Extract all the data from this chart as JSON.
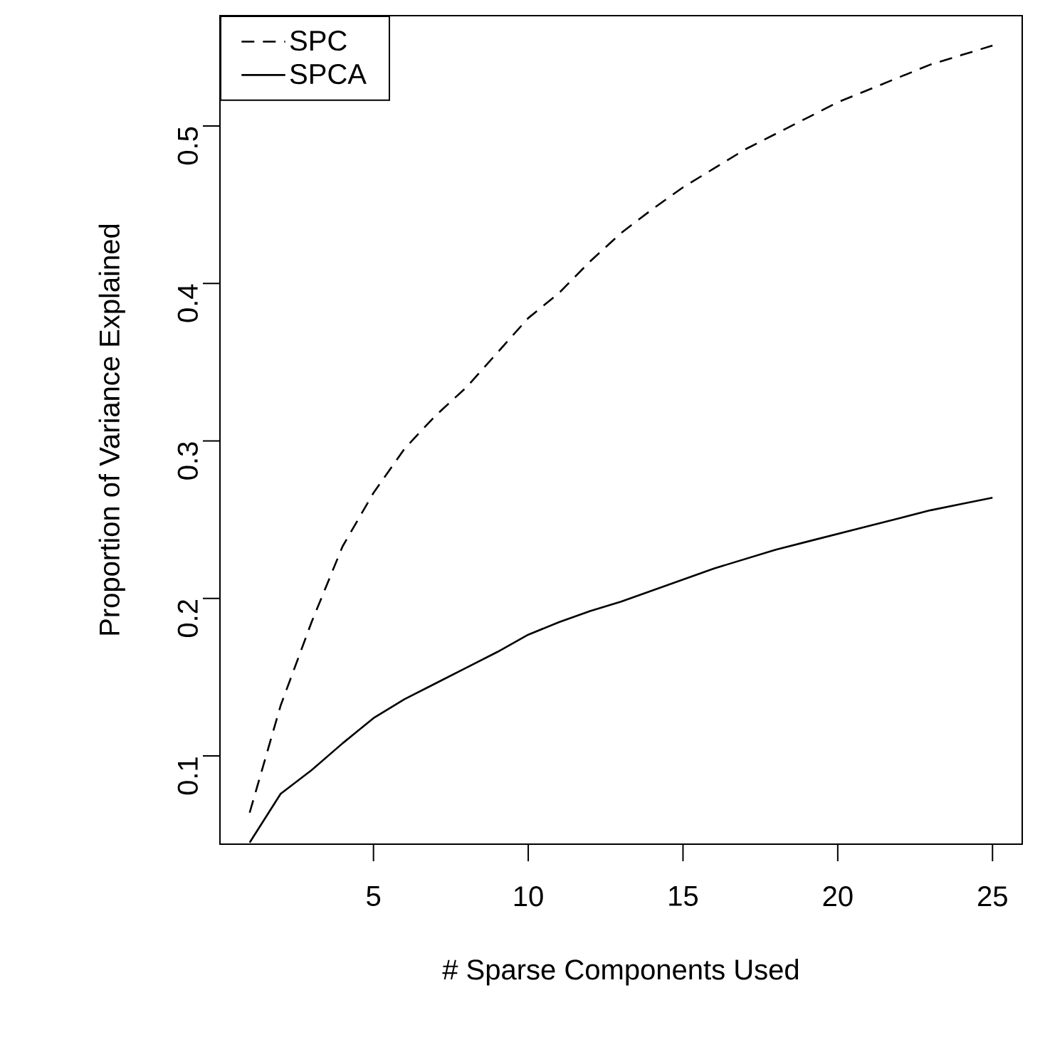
{
  "chart_data": {
    "type": "line",
    "xlabel": "# Sparse Components Used",
    "ylabel": "Proportion of Variance Explained",
    "x": [
      1,
      2,
      3,
      4,
      5,
      6,
      7,
      8,
      9,
      10,
      11,
      12,
      13,
      14,
      15,
      16,
      17,
      18,
      19,
      20,
      21,
      22,
      23,
      24,
      25
    ],
    "series": [
      {
        "name": "SPC",
        "color": "#000000",
        "line_style": "dashed",
        "values": [
          0.064,
          0.132,
          0.185,
          0.233,
          0.267,
          0.295,
          0.316,
          0.334,
          0.356,
          0.378,
          0.394,
          0.414,
          0.432,
          0.447,
          0.461,
          0.473,
          0.485,
          0.495,
          0.505,
          0.515,
          0.523,
          0.531,
          0.539,
          0.545,
          0.551
        ]
      },
      {
        "name": "SPCA",
        "color": "#000000",
        "line_style": "solid",
        "values": [
          0.045,
          0.076,
          0.091,
          0.108,
          0.124,
          0.136,
          0.146,
          0.156,
          0.166,
          0.177,
          0.185,
          0.192,
          0.198,
          0.205,
          0.212,
          0.219,
          0.225,
          0.231,
          0.236,
          0.241,
          0.246,
          0.251,
          0.256,
          0.26,
          0.264
        ]
      }
    ],
    "xlim": [
      0.04,
      25.96
    ],
    "ylim": [
      0.044,
      0.57
    ],
    "xticks": [
      5,
      10,
      15,
      20,
      25
    ],
    "yticks": [
      0.1,
      0.2,
      0.3,
      0.4,
      0.5
    ],
    "legend": "top left",
    "grid": false,
    "marker": "none"
  }
}
